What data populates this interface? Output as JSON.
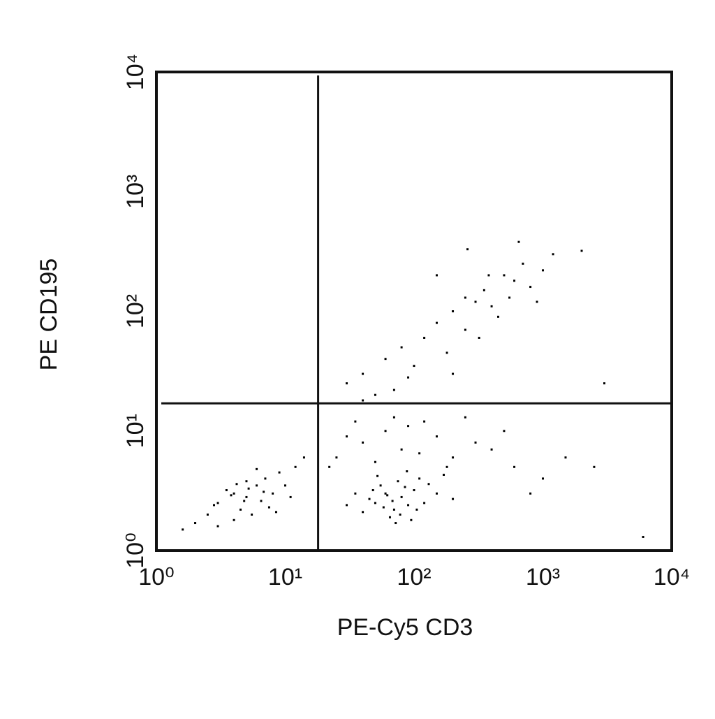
{
  "chart_data": {
    "type": "scatter",
    "xlabel": "PE-Cy5 CD3",
    "ylabel": "PE CD195",
    "xscale": "log",
    "yscale": "log",
    "xlim": [
      1,
      10000
    ],
    "ylim": [
      1,
      10000
    ],
    "xticks": [
      {
        "value": 1,
        "label": "10⁰"
      },
      {
        "value": 10,
        "label": "10¹"
      },
      {
        "value": 100,
        "label": "10²"
      },
      {
        "value": 1000,
        "label": "10³"
      },
      {
        "value": 10000,
        "label": "10⁴"
      }
    ],
    "yticks": [
      {
        "value": 1,
        "label": "10⁰"
      },
      {
        "value": 10,
        "label": "10¹"
      },
      {
        "value": 100,
        "label": "10²"
      },
      {
        "value": 1000,
        "label": "10³"
      },
      {
        "value": 10000,
        "label": "10⁴"
      }
    ],
    "x_gate": 18,
    "y_gate": 17,
    "color": "#000000",
    "x": [
      3,
      4,
      5,
      6,
      4.5,
      7,
      3.5,
      5.5,
      8,
      2.5,
      6.5,
      4,
      9,
      5,
      3,
      7.5,
      2,
      10,
      6,
      4.8,
      12,
      3.8,
      5.2,
      8.5,
      1.6,
      11,
      14,
      6.8,
      2.8,
      4.2,
      50,
      60,
      70,
      80,
      55,
      90,
      100,
      65,
      45,
      75,
      120,
      40,
      85,
      58,
      110,
      35,
      68,
      95,
      150,
      52,
      78,
      130,
      62,
      30,
      88,
      200,
      48,
      72,
      105,
      170,
      25,
      40,
      60,
      80,
      120,
      150,
      200,
      300,
      35,
      50,
      90,
      250,
      400,
      600,
      30,
      180,
      70,
      500,
      22,
      1000,
      1500,
      2500,
      800,
      6000,
      110,
      30,
      40,
      50,
      60,
      80,
      100,
      120,
      150,
      200,
      250,
      300,
      350,
      400,
      500,
      600,
      700,
      250,
      180,
      90,
      450,
      320,
      800,
      1000,
      150,
      70,
      550,
      380,
      200,
      1200,
      900,
      260,
      650,
      2000,
      40,
      3000
    ],
    "values": [
      2.5,
      3,
      2.8,
      3.5,
      2.2,
      4,
      3.2,
      2,
      3,
      2,
      2.6,
      1.8,
      4.5,
      3.8,
      1.6,
      2.3,
      1.7,
      3.5,
      4.8,
      2.6,
      5,
      2.9,
      3.3,
      2.1,
      1.5,
      2.8,
      6,
      3.1,
      2.4,
      3.6,
      2.5,
      3,
      2.2,
      2.8,
      3.5,
      2.4,
      3.2,
      1.9,
      2.7,
      3.8,
      2.5,
      2.1,
      3.4,
      2.3,
      4,
      3,
      2.6,
      1.8,
      3,
      4.2,
      2,
      3.6,
      2.9,
      2.4,
      4.6,
      2.7,
      3.2,
      1.7,
      2.2,
      4.3,
      6,
      8,
      10,
      7,
      12,
      9,
      6,
      8,
      12,
      5.5,
      11,
      13,
      7,
      5,
      9,
      5,
      13,
      10,
      5,
      4,
      6,
      5,
      3,
      1.3,
      6.5,
      25,
      30,
      20,
      40,
      50,
      35,
      60,
      80,
      100,
      70,
      120,
      150,
      110,
      200,
      180,
      250,
      130,
      45,
      28,
      90,
      60,
      160,
      220,
      200,
      22,
      130,
      200,
      30,
      300,
      120,
      330,
      380,
      320,
      18,
      25
    ]
  }
}
